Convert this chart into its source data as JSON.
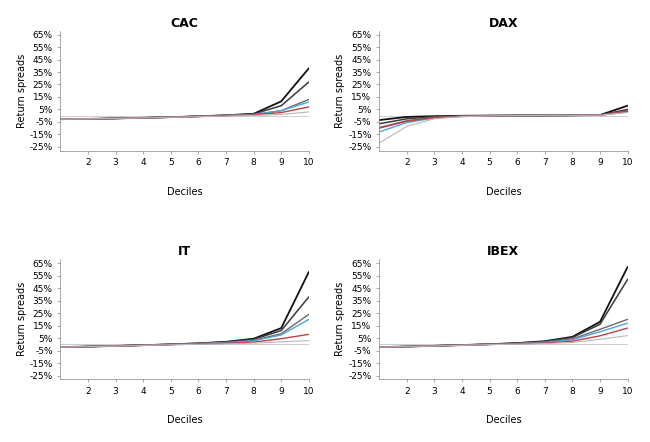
{
  "titles": [
    "CAC",
    "DAX",
    "IT",
    "IBEX"
  ],
  "xlabel": "Deciles",
  "ylabel": "Return spreads",
  "yticks": [
    -0.25,
    -0.15,
    -0.05,
    0.05,
    0.15,
    0.25,
    0.35,
    0.45,
    0.55,
    0.65
  ],
  "ylim": [
    -0.28,
    0.68
  ],
  "xlim": [
    1,
    10
  ],
  "xticks": [
    2,
    3,
    4,
    5,
    6,
    7,
    8,
    9,
    10
  ],
  "deciles": [
    1,
    2,
    3,
    4,
    5,
    6,
    7,
    8,
    9,
    10
  ],
  "colors": [
    "#111111",
    "#3a3a3a",
    "#6a6a6a",
    "#4da6e0",
    "#c0404a",
    "#b8b8b8"
  ],
  "CAC": [
    [
      -0.028,
      -0.026,
      -0.022,
      -0.017,
      -0.012,
      -0.005,
      0.003,
      0.015,
      0.115,
      0.38
    ],
    [
      -0.028,
      -0.026,
      -0.022,
      -0.017,
      -0.012,
      -0.005,
      0.003,
      0.013,
      0.08,
      0.27
    ],
    [
      -0.028,
      -0.026,
      -0.022,
      -0.017,
      -0.012,
      -0.005,
      0.002,
      0.009,
      0.04,
      0.13
    ],
    [
      -0.028,
      -0.026,
      -0.022,
      -0.017,
      -0.012,
      -0.005,
      0.002,
      0.009,
      0.04,
      0.11
    ],
    [
      -0.028,
      -0.026,
      -0.022,
      -0.017,
      -0.012,
      -0.006,
      0.001,
      0.006,
      0.025,
      0.07
    ],
    [
      -0.028,
      -0.026,
      -0.022,
      -0.017,
      -0.013,
      -0.008,
      -0.003,
      0.002,
      0.01,
      0.03
    ]
  ],
  "DAX": [
    [
      -0.035,
      -0.01,
      -0.004,
      -0.001,
      0.001,
      0.002,
      0.002,
      0.003,
      0.005,
      0.08
    ],
    [
      -0.065,
      -0.025,
      -0.008,
      -0.003,
      0.0,
      0.001,
      0.002,
      0.003,
      0.005,
      0.05
    ],
    [
      -0.095,
      -0.04,
      -0.012,
      -0.004,
      -0.001,
      0.001,
      0.002,
      0.003,
      0.004,
      0.04
    ],
    [
      -0.13,
      -0.055,
      -0.018,
      -0.006,
      -0.001,
      0.001,
      0.002,
      0.003,
      0.004,
      0.03
    ],
    [
      -0.1,
      -0.045,
      -0.015,
      -0.005,
      -0.001,
      0.001,
      0.002,
      0.003,
      0.004,
      0.035
    ],
    [
      -0.22,
      -0.085,
      -0.025,
      -0.008,
      -0.001,
      0.001,
      0.002,
      0.003,
      0.004,
      0.025
    ]
  ],
  "IT": [
    [
      -0.022,
      -0.018,
      -0.013,
      -0.007,
      0.0,
      0.008,
      0.02,
      0.045,
      0.13,
      0.58
    ],
    [
      -0.022,
      -0.018,
      -0.013,
      -0.007,
      0.0,
      0.007,
      0.018,
      0.04,
      0.11,
      0.38
    ],
    [
      -0.022,
      -0.018,
      -0.013,
      -0.007,
      -0.001,
      0.006,
      0.014,
      0.032,
      0.085,
      0.24
    ],
    [
      -0.022,
      -0.018,
      -0.013,
      -0.007,
      -0.001,
      0.005,
      0.013,
      0.028,
      0.075,
      0.2
    ],
    [
      -0.022,
      -0.018,
      -0.013,
      -0.008,
      -0.002,
      0.003,
      0.008,
      0.018,
      0.045,
      0.08
    ],
    [
      -0.022,
      -0.018,
      -0.014,
      -0.009,
      -0.004,
      0.0,
      0.004,
      0.009,
      0.02,
      0.03
    ]
  ],
  "IBEX": [
    [
      -0.022,
      -0.018,
      -0.012,
      -0.006,
      0.001,
      0.01,
      0.025,
      0.06,
      0.18,
      0.62
    ],
    [
      -0.022,
      -0.018,
      -0.012,
      -0.006,
      0.001,
      0.009,
      0.022,
      0.055,
      0.16,
      0.52
    ],
    [
      -0.022,
      -0.018,
      -0.012,
      -0.006,
      0.0,
      0.007,
      0.018,
      0.043,
      0.12,
      0.2
    ],
    [
      -0.022,
      -0.018,
      -0.012,
      -0.006,
      0.0,
      0.006,
      0.015,
      0.037,
      0.1,
      0.17
    ],
    [
      -0.022,
      -0.018,
      -0.013,
      -0.007,
      -0.001,
      0.004,
      0.01,
      0.025,
      0.068,
      0.13
    ],
    [
      -0.022,
      -0.018,
      -0.013,
      -0.008,
      -0.003,
      0.001,
      0.006,
      0.015,
      0.04,
      0.07
    ]
  ],
  "linewidths": [
    1.3,
    1.1,
    1.0,
    1.0,
    1.0,
    0.8
  ],
  "background_color": "#ffffff",
  "title_fontsize": 9,
  "label_fontsize": 7,
  "tick_fontsize": 6.5
}
